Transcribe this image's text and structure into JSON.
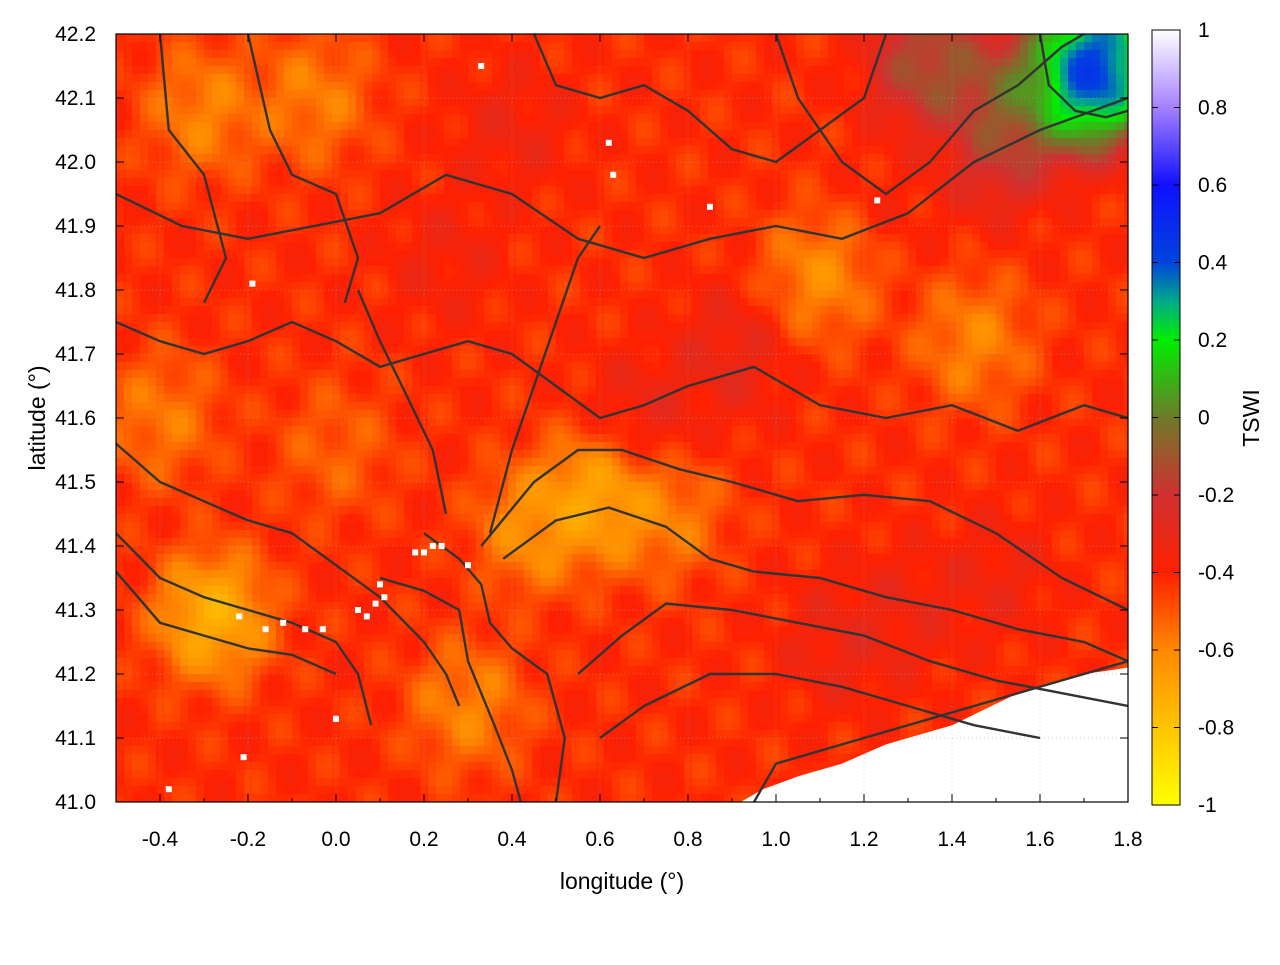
{
  "chart_data": {
    "type": "heatmap",
    "title": "",
    "xlabel": "longitude (°)",
    "ylabel": "latitude (°)",
    "xlim": [
      -0.5,
      1.8
    ],
    "ylim": [
      41.0,
      42.2
    ],
    "x_ticks": [
      "-0.4",
      "-0.2",
      "0.0",
      "0.2",
      "0.4",
      "0.6",
      "0.8",
      "1.0",
      "1.2",
      "1.4",
      "1.6",
      "1.8"
    ],
    "x_tick_values": [
      -0.4,
      -0.2,
      0.0,
      0.2,
      0.4,
      0.6,
      0.8,
      1.0,
      1.2,
      1.4,
      1.6,
      1.8
    ],
    "y_ticks": [
      "41.0",
      "41.1",
      "41.2",
      "41.3",
      "41.4",
      "41.5",
      "41.6",
      "41.7",
      "41.8",
      "41.9",
      "42.0",
      "42.1",
      "42.2"
    ],
    "y_tick_values": [
      41.0,
      41.1,
      41.2,
      41.3,
      41.4,
      41.5,
      41.6,
      41.7,
      41.8,
      41.9,
      42.0,
      42.1,
      42.2
    ],
    "grid": true,
    "colorbar": {
      "label": "TSWI",
      "range": [
        -1,
        1
      ],
      "ticks": [
        "1",
        "0.8",
        "0.6",
        "0.4",
        "0.2",
        "0",
        "-0.2",
        "-0.4",
        "-0.6",
        "-0.8",
        "-1"
      ],
      "tick_values": [
        1,
        0.8,
        0.6,
        0.4,
        0.2,
        0,
        -0.2,
        -0.4,
        -0.6,
        -0.8,
        -1
      ],
      "color_stops": [
        {
          "v": -1.0,
          "color": "#ffff00"
        },
        {
          "v": -0.8,
          "color": "#ffc400"
        },
        {
          "v": -0.6,
          "color": "#ff8800"
        },
        {
          "v": -0.4,
          "color": "#ff2000"
        },
        {
          "v": -0.2,
          "color": "#d03030"
        },
        {
          "v": 0.0,
          "color": "#6e7a2a"
        },
        {
          "v": 0.2,
          "color": "#00ee00"
        },
        {
          "v": 0.3,
          "color": "#00aa88"
        },
        {
          "v": 0.4,
          "color": "#0044dd"
        },
        {
          "v": 0.6,
          "color": "#1010ff"
        },
        {
          "v": 0.8,
          "color": "#a680ff"
        },
        {
          "v": 1.0,
          "color": "#ffffff"
        }
      ]
    },
    "field_features": [
      {
        "lon": -0.28,
        "lat": 41.29,
        "tswi": -0.95
      },
      {
        "lon": 0.45,
        "lat": 41.43,
        "tswi": -0.78
      },
      {
        "lon": 0.6,
        "lat": 41.48,
        "tswi": -0.9
      },
      {
        "lon": 0.3,
        "lat": 41.15,
        "tswi": -0.72
      },
      {
        "lon": 0.75,
        "lat": 41.45,
        "tswi": -0.7
      },
      {
        "lon": 1.1,
        "lat": 41.82,
        "tswi": -0.75
      },
      {
        "lon": 1.45,
        "lat": 41.72,
        "tswi": -0.72
      },
      {
        "lon": -0.3,
        "lat": 42.08,
        "tswi": -0.72
      },
      {
        "lon": -0.05,
        "lat": 42.1,
        "tswi": -0.7
      },
      {
        "lon": -0.4,
        "lat": 41.6,
        "tswi": -0.68
      },
      {
        "lon": 0.0,
        "lat": 41.55,
        "tswi": -0.6
      },
      {
        "lon": 0.9,
        "lat": 41.7,
        "tswi": -0.22
      },
      {
        "lon": 0.7,
        "lat": 41.6,
        "tswi": -0.24
      },
      {
        "lon": 0.4,
        "lat": 42.05,
        "tswi": -0.28
      },
      {
        "lon": 0.25,
        "lat": 41.85,
        "tswi": -0.3
      },
      {
        "lon": 1.3,
        "lat": 41.3,
        "tswi": -0.28
      },
      {
        "lon": 1.5,
        "lat": 41.35,
        "tswi": -0.28
      },
      {
        "lon": 1.15,
        "lat": 41.25,
        "tswi": -0.25
      },
      {
        "lon": 1.3,
        "lat": 41.95,
        "tswi": -0.38
      },
      {
        "lon": 1.7,
        "lat": 42.12,
        "tswi": 0.85
      },
      {
        "lon": 1.75,
        "lat": 42.17,
        "tswi": 0.78
      },
      {
        "lon": 1.55,
        "lat": 42.1,
        "tswi": 0.2
      },
      {
        "lon": 1.35,
        "lat": 42.15,
        "tswi": 0.15
      },
      {
        "lon": 1.5,
        "lat": 42.02,
        "tswi": -0.05
      }
    ],
    "base_tswi": -0.42,
    "no_data_region": [
      [
        1.8,
        41.21
      ],
      [
        1.7,
        41.2
      ],
      [
        1.55,
        41.17
      ],
      [
        1.4,
        41.12
      ],
      [
        1.25,
        41.09
      ],
      [
        1.15,
        41.06
      ],
      [
        1.05,
        41.04
      ],
      [
        0.97,
        41.02
      ],
      [
        0.92,
        41.0
      ],
      [
        1.8,
        41.0
      ]
    ],
    "contours": [
      [
        [
          -0.5,
          41.56
        ],
        [
          -0.4,
          41.5
        ],
        [
          -0.3,
          41.47
        ],
        [
          -0.2,
          41.44
        ],
        [
          -0.1,
          41.42
        ],
        [
          0.0,
          41.37
        ],
        [
          0.1,
          41.32
        ],
        [
          0.2,
          41.25
        ],
        [
          0.25,
          41.2
        ],
        [
          0.28,
          41.15
        ]
      ],
      [
        [
          -0.5,
          41.42
        ],
        [
          -0.4,
          41.35
        ],
        [
          -0.3,
          41.32
        ],
        [
          -0.2,
          41.3
        ],
        [
          -0.1,
          41.28
        ],
        [
          0.0,
          41.25
        ],
        [
          0.05,
          41.2
        ],
        [
          0.08,
          41.12
        ]
      ],
      [
        [
          -0.5,
          41.36
        ],
        [
          -0.4,
          41.28
        ],
        [
          -0.3,
          41.26
        ],
        [
          -0.2,
          41.24
        ],
        [
          -0.1,
          41.23
        ],
        [
          0.0,
          41.2
        ]
      ],
      [
        [
          0.33,
          41.4
        ],
        [
          0.45,
          41.5
        ],
        [
          0.55,
          41.55
        ],
        [
          0.65,
          41.55
        ],
        [
          0.78,
          41.52
        ],
        [
          0.9,
          41.5
        ],
        [
          1.05,
          41.47
        ],
        [
          1.2,
          41.48
        ],
        [
          1.35,
          41.47
        ],
        [
          1.5,
          41.42
        ],
        [
          1.65,
          41.35
        ],
        [
          1.8,
          41.3
        ]
      ],
      [
        [
          0.38,
          41.38
        ],
        [
          0.5,
          41.44
        ],
        [
          0.62,
          41.46
        ],
        [
          0.75,
          41.43
        ],
        [
          0.85,
          41.38
        ],
        [
          0.95,
          41.36
        ],
        [
          1.1,
          41.35
        ],
        [
          1.25,
          41.32
        ],
        [
          1.4,
          41.3
        ],
        [
          1.55,
          41.27
        ],
        [
          1.7,
          41.25
        ],
        [
          1.8,
          41.22
        ]
      ],
      [
        [
          0.55,
          41.2
        ],
        [
          0.65,
          41.26
        ],
        [
          0.75,
          41.31
        ],
        [
          0.9,
          41.3
        ],
        [
          1.05,
          41.28
        ],
        [
          1.2,
          41.26
        ],
        [
          1.35,
          41.22
        ],
        [
          1.5,
          41.19
        ],
        [
          1.65,
          41.17
        ],
        [
          1.8,
          41.15
        ]
      ],
      [
        [
          0.6,
          41.1
        ],
        [
          0.7,
          41.15
        ],
        [
          0.85,
          41.2
        ],
        [
          1.0,
          41.2
        ],
        [
          1.15,
          41.18
        ],
        [
          1.3,
          41.15
        ],
        [
          1.45,
          41.12
        ],
        [
          1.6,
          41.1
        ]
      ],
      [
        [
          -0.5,
          41.95
        ],
        [
          -0.35,
          41.9
        ],
        [
          -0.2,
          41.88
        ],
        [
          -0.05,
          41.9
        ],
        [
          0.1,
          41.92
        ],
        [
          0.25,
          41.98
        ],
        [
          0.4,
          41.95
        ],
        [
          0.55,
          41.88
        ],
        [
          0.7,
          41.85
        ],
        [
          0.85,
          41.88
        ],
        [
          1.0,
          41.9
        ],
        [
          1.15,
          41.88
        ],
        [
          1.3,
          41.92
        ],
        [
          1.45,
          42.0
        ],
        [
          1.6,
          42.05
        ],
        [
          1.8,
          42.1
        ]
      ],
      [
        [
          -0.5,
          41.75
        ],
        [
          -0.4,
          41.72
        ],
        [
          -0.3,
          41.7
        ],
        [
          -0.2,
          41.72
        ],
        [
          -0.1,
          41.75
        ],
        [
          0.0,
          41.72
        ],
        [
          0.1,
          41.68
        ],
        [
          0.2,
          41.7
        ],
        [
          0.3,
          41.72
        ],
        [
          0.4,
          41.7
        ],
        [
          0.5,
          41.65
        ],
        [
          0.6,
          41.6
        ],
        [
          0.7,
          41.62
        ],
        [
          0.8,
          41.65
        ],
        [
          0.95,
          41.68
        ],
        [
          1.1,
          41.62
        ],
        [
          1.25,
          41.6
        ],
        [
          1.4,
          41.62
        ],
        [
          1.55,
          41.58
        ],
        [
          1.7,
          41.62
        ],
        [
          1.8,
          41.6
        ]
      ],
      [
        [
          0.45,
          42.2
        ],
        [
          0.5,
          42.12
        ],
        [
          0.6,
          42.1
        ],
        [
          0.7,
          42.12
        ],
        [
          0.8,
          42.08
        ],
        [
          0.9,
          42.02
        ],
        [
          1.0,
          42.0
        ],
        [
          1.1,
          42.05
        ],
        [
          1.2,
          42.1
        ],
        [
          1.25,
          42.2
        ]
      ],
      [
        [
          1.0,
          42.2
        ],
        [
          1.05,
          42.1
        ],
        [
          1.15,
          42.0
        ],
        [
          1.25,
          41.95
        ],
        [
          1.35,
          42.0
        ],
        [
          1.45,
          42.08
        ],
        [
          1.55,
          42.12
        ],
        [
          1.65,
          42.18
        ],
        [
          1.7,
          42.2
        ]
      ],
      [
        [
          1.6,
          42.2
        ],
        [
          1.62,
          42.12
        ],
        [
          1.68,
          42.08
        ],
        [
          1.75,
          42.07
        ],
        [
          1.8,
          42.08
        ]
      ],
      [
        [
          -0.2,
          42.2
        ],
        [
          -0.15,
          42.05
        ],
        [
          -0.1,
          41.98
        ],
        [
          0.0,
          41.95
        ],
        [
          0.05,
          41.85
        ],
        [
          0.02,
          41.78
        ]
      ],
      [
        [
          -0.4,
          42.2
        ],
        [
          -0.38,
          42.05
        ],
        [
          -0.3,
          41.98
        ],
        [
          -0.25,
          41.85
        ],
        [
          -0.3,
          41.78
        ]
      ],
      [
        [
          0.2,
          41.42
        ],
        [
          0.28,
          41.38
        ],
        [
          0.33,
          41.34
        ],
        [
          0.35,
          41.28
        ],
        [
          0.4,
          41.24
        ],
        [
          0.48,
          41.2
        ],
        [
          0.52,
          41.1
        ],
        [
          0.5,
          41.0
        ]
      ],
      [
        [
          0.1,
          41.35
        ],
        [
          0.2,
          41.33
        ],
        [
          0.28,
          41.3
        ],
        [
          0.3,
          41.22
        ],
        [
          0.36,
          41.12
        ],
        [
          0.4,
          41.05
        ],
        [
          0.42,
          41.0
        ]
      ],
      [
        [
          0.35,
          41.42
        ],
        [
          0.4,
          41.55
        ],
        [
          0.45,
          41.65
        ],
        [
          0.5,
          41.75
        ],
        [
          0.55,
          41.85
        ],
        [
          0.6,
          41.9
        ]
      ],
      [
        [
          0.25,
          41.45
        ],
        [
          0.22,
          41.55
        ],
        [
          0.15,
          41.65
        ],
        [
          0.1,
          41.72
        ],
        [
          0.05,
          41.8
        ]
      ],
      [
        [
          0.95,
          41.0
        ],
        [
          1.0,
          41.06
        ],
        [
          1.1,
          41.08
        ],
        [
          1.2,
          41.1
        ],
        [
          1.35,
          41.13
        ],
        [
          1.5,
          41.16
        ],
        [
          1.65,
          41.19
        ],
        [
          1.8,
          41.22
        ]
      ]
    ],
    "missing_pixels": [
      [
        0.05,
        41.3
      ],
      [
        0.07,
        41.29
      ],
      [
        0.09,
        41.31
      ],
      [
        0.1,
        41.34
      ],
      [
        0.11,
        41.32
      ],
      [
        0.2,
        41.39
      ],
      [
        0.22,
        41.4
      ],
      [
        0.24,
        41.4
      ],
      [
        0.18,
        41.39
      ],
      [
        0.3,
        41.37
      ],
      [
        -0.03,
        41.27
      ],
      [
        -0.07,
        41.27
      ],
      [
        -0.12,
        41.28
      ],
      [
        -0.16,
        41.27
      ],
      [
        -0.22,
        41.29
      ],
      [
        0.0,
        41.13
      ],
      [
        -0.21,
        41.07
      ],
      [
        -0.38,
        41.02
      ],
      [
        0.62,
        42.03
      ],
      [
        0.63,
        41.98
      ],
      [
        -0.19,
        41.81
      ],
      [
        0.85,
        41.93
      ],
      [
        1.23,
        41.94
      ],
      [
        0.33,
        42.15
      ]
    ]
  }
}
